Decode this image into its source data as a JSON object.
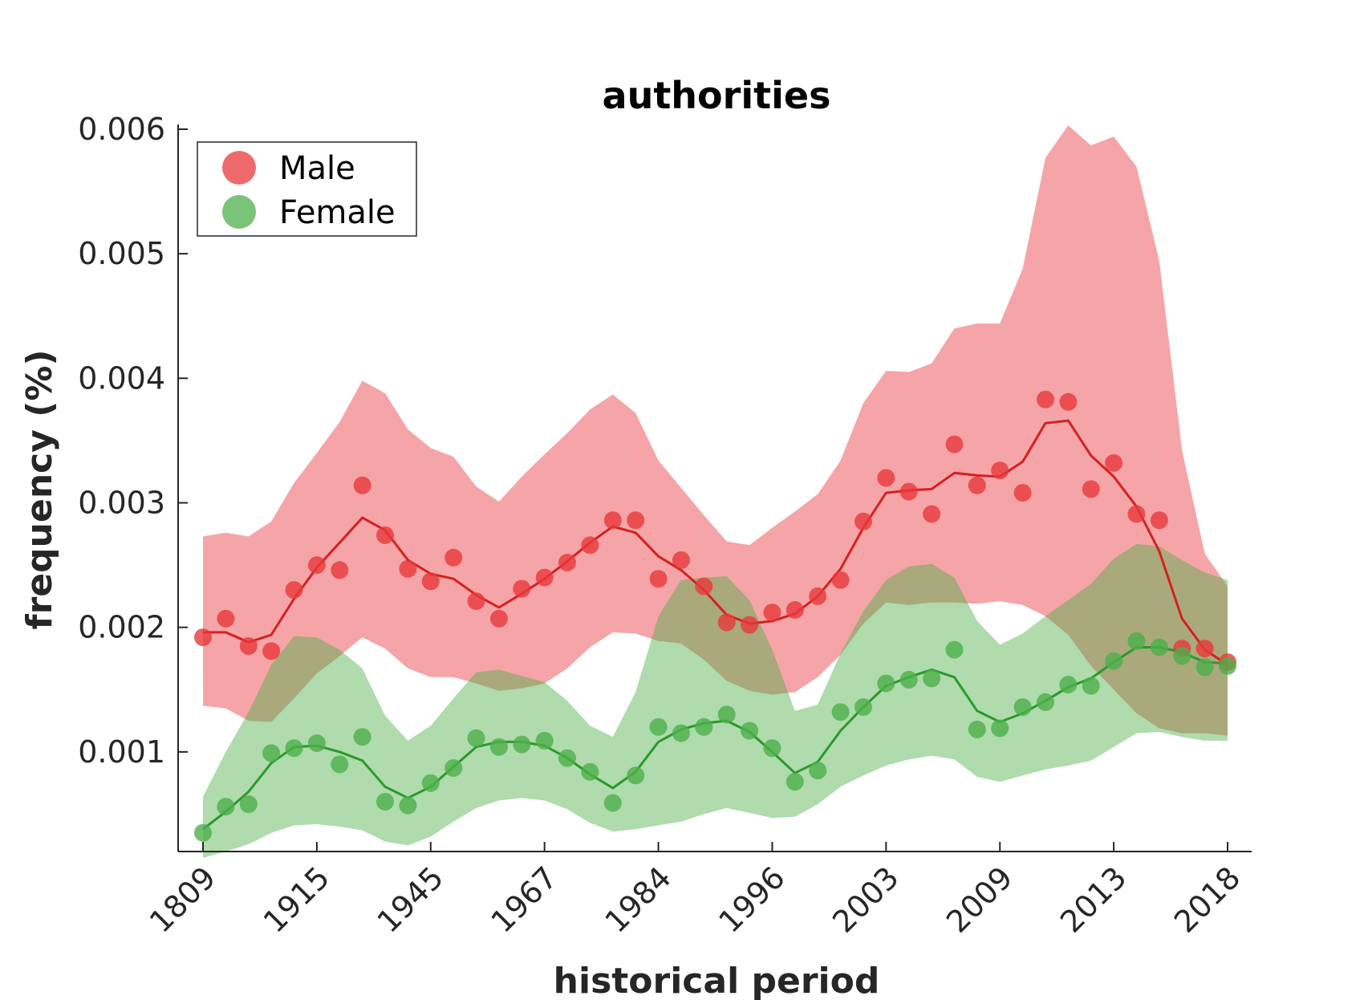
{
  "chart_data": {
    "type": "line",
    "title": "authorities",
    "xlabel": "historical period",
    "ylabel": "frequency (%)",
    "ylim": [
      0.0002,
      0.006
    ],
    "yticks": [
      "0.001",
      "0.002",
      "0.003",
      "0.004",
      "0.005",
      "0.006"
    ],
    "xtick_labels": [
      "1809",
      "1915",
      "1945",
      "1967",
      "1984",
      "1996",
      "2003",
      "2009",
      "2013",
      "2018"
    ],
    "xtick_index": [
      0,
      5,
      10,
      15,
      20,
      25,
      30,
      35,
      40,
      45
    ],
    "n_points": 46,
    "grid": false,
    "legend_position": "top-left",
    "series": [
      {
        "name": "Male",
        "color": "#E8383B",
        "line_color": "#D62020",
        "points": [
          0.00192,
          0.00207,
          0.00185,
          0.00181,
          0.0023,
          0.0025,
          0.00246,
          0.00314,
          0.00274,
          0.00247,
          0.00237,
          0.00256,
          0.00221,
          0.00207,
          0.00231,
          0.0024,
          0.00252,
          0.00266,
          0.00286,
          0.00286,
          0.00239,
          0.00254,
          0.00233,
          0.00204,
          0.00202,
          0.00212,
          0.00214,
          0.00225,
          0.00238,
          0.00285,
          0.0032,
          0.00309,
          0.00291,
          0.00347,
          0.00314,
          0.00326,
          0.00308,
          0.00383,
          0.00381,
          0.00311,
          0.00332,
          0.00291,
          0.00286,
          0.00183,
          0.00183,
          0.00172
        ],
        "trend": [
          0.00196,
          0.00196,
          0.00188,
          0.00194,
          0.00223,
          0.00248,
          0.00268,
          0.00288,
          0.00278,
          0.00254,
          0.00243,
          0.00239,
          0.00226,
          0.00216,
          0.00227,
          0.00239,
          0.00253,
          0.00268,
          0.00281,
          0.00276,
          0.00257,
          0.00246,
          0.0023,
          0.0021,
          0.00203,
          0.00205,
          0.00211,
          0.00225,
          0.00247,
          0.0028,
          0.00308,
          0.0031,
          0.00311,
          0.00324,
          0.00322,
          0.00321,
          0.00333,
          0.00364,
          0.00366,
          0.00338,
          0.00321,
          0.00297,
          0.00261,
          0.00207,
          0.00182,
          0.0017
        ],
        "band_upper": [
          0.00273,
          0.00276,
          0.00273,
          0.00285,
          0.00316,
          0.0034,
          0.00365,
          0.00398,
          0.00388,
          0.00359,
          0.00344,
          0.00337,
          0.00313,
          0.00301,
          0.00321,
          0.00339,
          0.00356,
          0.00375,
          0.00387,
          0.00372,
          0.00334,
          0.00312,
          0.0029,
          0.00269,
          0.00266,
          0.0028,
          0.00293,
          0.00307,
          0.00334,
          0.0038,
          0.00406,
          0.00405,
          0.00412,
          0.0044,
          0.00444,
          0.00444,
          0.00488,
          0.00577,
          0.00603,
          0.00587,
          0.00594,
          0.0057,
          0.00494,
          0.00342,
          0.00259,
          0.00233
        ],
        "band_lower": [
          0.00137,
          0.00135,
          0.00125,
          0.00124,
          0.00143,
          0.00163,
          0.00177,
          0.00192,
          0.00183,
          0.00167,
          0.0016,
          0.0016,
          0.00155,
          0.00149,
          0.00151,
          0.00155,
          0.00167,
          0.00184,
          0.00196,
          0.00195,
          0.00189,
          0.00187,
          0.00174,
          0.00157,
          0.00149,
          0.00146,
          0.00148,
          0.0016,
          0.00178,
          0.00203,
          0.0022,
          0.00218,
          0.0022,
          0.0022,
          0.00219,
          0.00221,
          0.00218,
          0.00209,
          0.00194,
          0.00169,
          0.0015,
          0.00131,
          0.00119,
          0.00115,
          0.00115,
          0.00113
        ]
      },
      {
        "name": "Female",
        "color": "#4DAF4A",
        "line_color": "#2A9A2A",
        "points": [
          0.00035,
          0.00056,
          0.00058,
          0.00099,
          0.00103,
          0.00107,
          0.0009,
          0.00112,
          0.0006,
          0.00057,
          0.00075,
          0.00087,
          0.00111,
          0.00104,
          0.00106,
          0.00109,
          0.00095,
          0.00084,
          0.00059,
          0.00081,
          0.0012,
          0.00115,
          0.0012,
          0.0013,
          0.00117,
          0.00103,
          0.00076,
          0.00085,
          0.00132,
          0.00136,
          0.00155,
          0.00158,
          0.00159,
          0.00182,
          0.00118,
          0.00119,
          0.00136,
          0.0014,
          0.00154,
          0.00153,
          0.00173,
          0.00189,
          0.00184,
          0.00177,
          0.00168,
          0.00169
        ],
        "trend": [
          0.00038,
          0.00052,
          0.00068,
          0.00091,
          0.00104,
          0.00105,
          0.001,
          0.00093,
          0.00072,
          0.00063,
          0.00072,
          0.00088,
          0.00104,
          0.00108,
          0.00108,
          0.00105,
          0.00095,
          0.00082,
          0.00071,
          0.00084,
          0.00108,
          0.00118,
          0.00123,
          0.00125,
          0.00116,
          0.001,
          0.00083,
          0.00092,
          0.00117,
          0.00136,
          0.00153,
          0.0016,
          0.00166,
          0.0016,
          0.00133,
          0.00124,
          0.00131,
          0.00141,
          0.00152,
          0.00159,
          0.00172,
          0.00184,
          0.00184,
          0.0018,
          0.00172,
          0.00171
        ],
        "band_upper": [
          0.00064,
          0.001,
          0.00132,
          0.0017,
          0.00193,
          0.00192,
          0.00182,
          0.00167,
          0.00129,
          0.00109,
          0.00121,
          0.00143,
          0.00164,
          0.00166,
          0.00161,
          0.00156,
          0.00141,
          0.00121,
          0.00112,
          0.00148,
          0.00209,
          0.00238,
          0.0024,
          0.00241,
          0.00222,
          0.00182,
          0.00133,
          0.00138,
          0.00179,
          0.00213,
          0.00238,
          0.00249,
          0.00251,
          0.0024,
          0.00205,
          0.00186,
          0.00195,
          0.00209,
          0.00222,
          0.00235,
          0.00255,
          0.00267,
          0.00265,
          0.00254,
          0.00244,
          0.00238
        ],
        "band_lower": [
          0.00015,
          0.0002,
          0.00026,
          0.00035,
          0.00041,
          0.00042,
          0.0004,
          0.00037,
          0.00028,
          0.00025,
          0.00032,
          0.00044,
          0.00055,
          0.00061,
          0.00063,
          0.00061,
          0.00054,
          0.00043,
          0.00036,
          0.00038,
          0.00041,
          0.00044,
          0.0005,
          0.00055,
          0.00051,
          0.00047,
          0.00048,
          0.00058,
          0.00072,
          0.00081,
          0.00089,
          0.00094,
          0.00097,
          0.00094,
          0.0008,
          0.00076,
          0.00081,
          0.00086,
          0.00089,
          0.00093,
          0.00104,
          0.00115,
          0.00116,
          0.00112,
          0.00109,
          0.00109
        ]
      }
    ]
  }
}
